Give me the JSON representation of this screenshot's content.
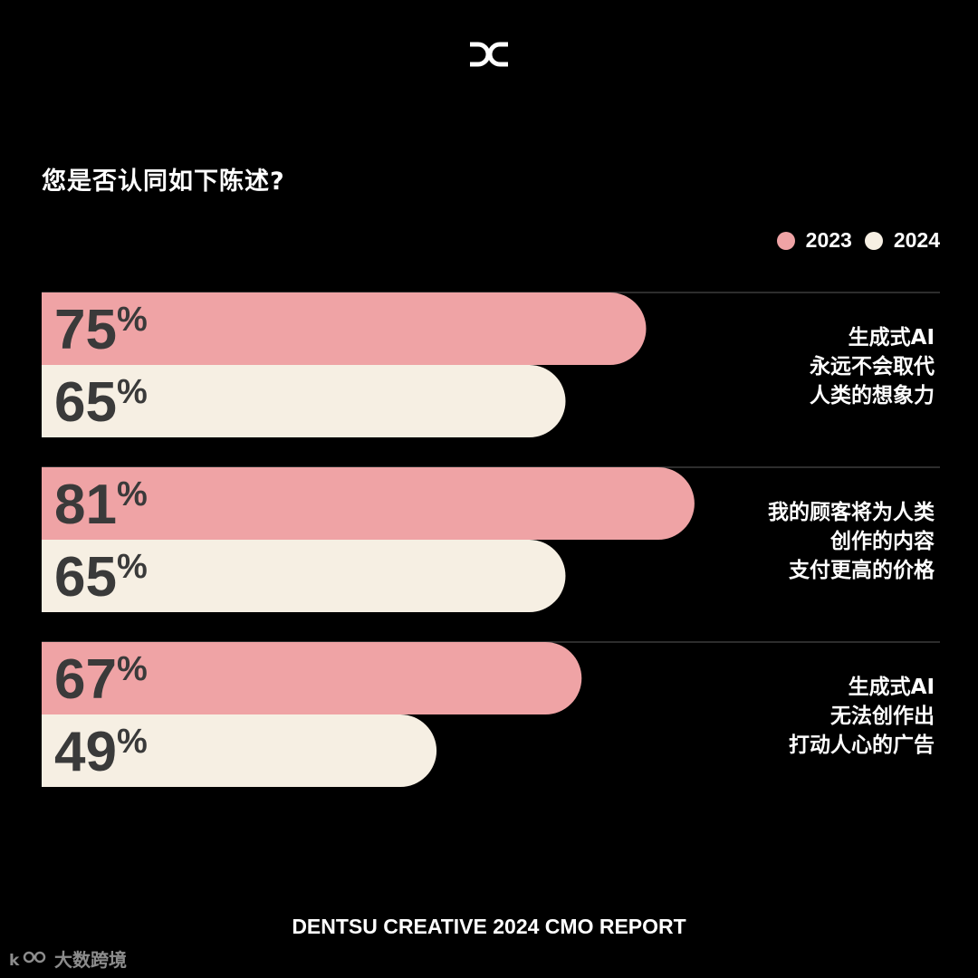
{
  "brand": {
    "logo_icon": "dc-logo-icon"
  },
  "question": "您是否认同如下陈述?",
  "legend": [
    {
      "label": "2023",
      "color": "#efa3a5"
    },
    {
      "label": "2024",
      "color": "#f6efe3"
    }
  ],
  "chart_data": {
    "type": "bar",
    "orientation": "horizontal",
    "categories": [
      [
        "生成式AI",
        "永远不会取代",
        "人类的想象力"
      ],
      [
        "我的顾客将为人类",
        "创作的内容",
        "支付更高的价格"
      ],
      [
        "生成式AI",
        "无法创作出",
        "打动人心的广告"
      ]
    ],
    "series": [
      {
        "name": "2023",
        "values": [
          75,
          81,
          67
        ],
        "labels": [
          "75%",
          "81%",
          "67%"
        ],
        "color": "#efa3a5"
      },
      {
        "name": "2024",
        "values": [
          65,
          65,
          49
        ],
        "labels": [
          "65%",
          "65%",
          "49%"
        ],
        "color": "#f6efe3"
      }
    ],
    "unit": "%",
    "xlim": [
      0,
      100
    ],
    "legend_position": "top-right",
    "grid": false,
    "label_color": "#3a3a3a"
  },
  "footer": "DENTSU CREATIVE 2024 CMO REPORT",
  "watermark": {
    "icon": "watermark-logo-icon",
    "text": "大数跨境"
  }
}
